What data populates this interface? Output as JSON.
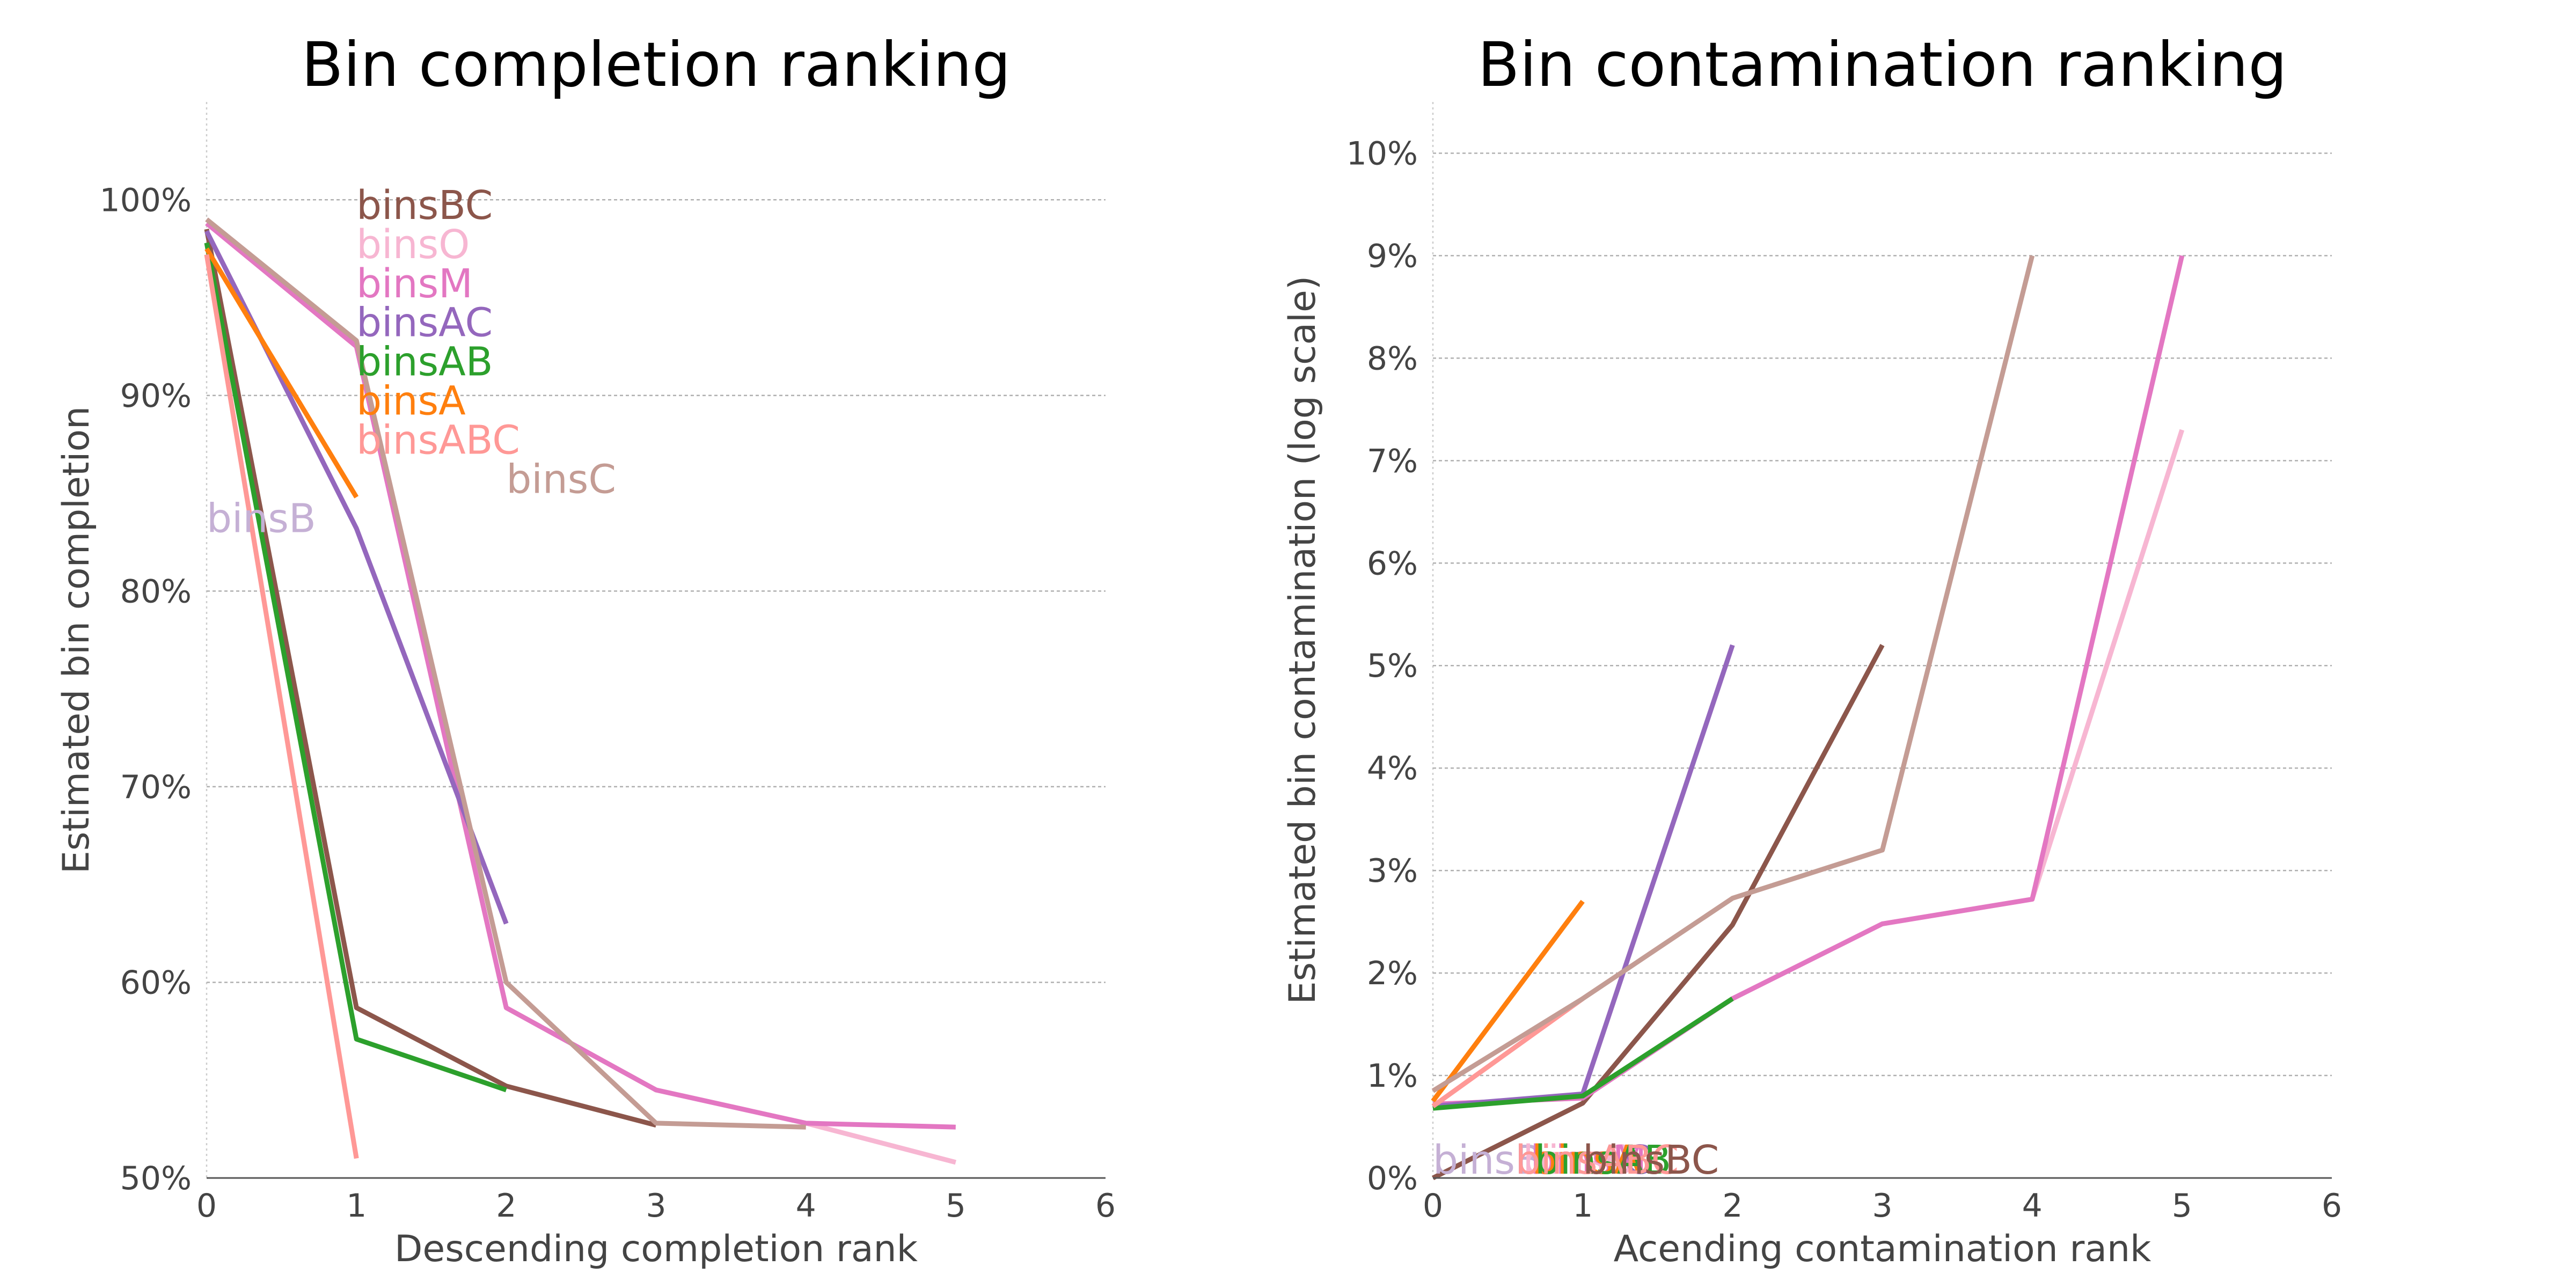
{
  "chart_data": [
    {
      "type": "line",
      "title": "Bin completion ranking",
      "xlabel": "Descending completion rank",
      "ylabel": "Estimated bin completion",
      "xlim": [
        0,
        6
      ],
      "ylim": [
        50,
        105
      ],
      "xticks": [
        0,
        1,
        2,
        3,
        4,
        5,
        6
      ],
      "yticks": [
        50,
        60,
        70,
        80,
        90,
        100
      ],
      "ytick_labels": [
        "50%",
        "60%",
        "70%",
        "80%",
        "90%",
        "100%"
      ],
      "grid": "horizontal",
      "series": [
        {
          "name": "binsBC",
          "color": "#8c564b",
          "points": [
            [
              0,
              98.5
            ],
            [
              1,
              58.7
            ],
            [
              2,
              54.7
            ],
            [
              3,
              52.7
            ]
          ]
        },
        {
          "name": "binsO",
          "color": "#f7b6d2",
          "points": [
            [
              0,
              98.8
            ],
            [
              1,
              92.5
            ],
            [
              2,
              58.7
            ],
            [
              3,
              54.5
            ],
            [
              4,
              52.8
            ],
            [
              5,
              50.8
            ]
          ]
        },
        {
          "name": "binsM",
          "color": "#e377c2",
          "points": [
            [
              0,
              98.8
            ],
            [
              1,
              92.5
            ],
            [
              2,
              58.7
            ],
            [
              3,
              54.5
            ],
            [
              4,
              52.8
            ],
            [
              5,
              52.6
            ]
          ]
        },
        {
          "name": "binsAC",
          "color": "#9467bd",
          "points": [
            [
              0,
              98.4
            ],
            [
              1,
              83.2
            ],
            [
              2,
              63.0
            ]
          ]
        },
        {
          "name": "binsAB",
          "color": "#2ca02c",
          "points": [
            [
              0,
              97.8
            ],
            [
              1,
              57.1
            ],
            [
              2,
              54.5
            ]
          ]
        },
        {
          "name": "binsA",
          "color": "#ff7f0e",
          "points": [
            [
              0,
              97.5
            ],
            [
              1,
              84.8
            ]
          ]
        },
        {
          "name": "binsABC",
          "color": "#ff9896",
          "points": [
            [
              0,
              97.2
            ],
            [
              1,
              51.0
            ]
          ]
        },
        {
          "name": "binsC",
          "color": "#c49c94",
          "points": [
            [
              0,
              99.0
            ],
            [
              1,
              92.8
            ],
            [
              2,
              60.0
            ],
            [
              3,
              52.8
            ],
            [
              4,
              52.6
            ]
          ]
        },
        {
          "name": "binsB",
          "color": "#c5b0d5",
          "points": []
        }
      ],
      "annotations": [
        {
          "text": "binsBC",
          "color": "#8c564b",
          "x": 1.0,
          "y": 98.8
        },
        {
          "text": "binsO",
          "color": "#f7b6d2",
          "x": 1.0,
          "y": 96.8
        },
        {
          "text": "binsM",
          "color": "#e377c2",
          "x": 1.0,
          "y": 94.8
        },
        {
          "text": "binsAC",
          "color": "#9467bd",
          "x": 1.0,
          "y": 92.8
        },
        {
          "text": "binsAB",
          "color": "#2ca02c",
          "x": 1.0,
          "y": 90.8
        },
        {
          "text": "binsA",
          "color": "#ff7f0e",
          "x": 1.0,
          "y": 88.8
        },
        {
          "text": "binsABC",
          "color": "#ff9896",
          "x": 1.0,
          "y": 86.8
        },
        {
          "text": "binsC",
          "color": "#c49c94",
          "x": 2.0,
          "y": 84.8
        },
        {
          "text": "binsB",
          "color": "#c5b0d5",
          "x": 0.0,
          "y": 82.8
        }
      ]
    },
    {
      "type": "line",
      "title": "Bin contamination ranking",
      "xlabel": "Acending contamination rank",
      "ylabel": "Estimated bin contamination (log scale)",
      "xlim": [
        0,
        6
      ],
      "ylim": [
        0,
        10.5
      ],
      "xticks": [
        0,
        1,
        2,
        3,
        4,
        5,
        6
      ],
      "yticks": [
        0,
        1,
        2,
        3,
        4,
        5,
        6,
        7,
        8,
        9,
        10
      ],
      "ytick_labels": [
        "0%",
        "1%",
        "2%",
        "3%",
        "4%",
        "5%",
        "6%",
        "7%",
        "8%",
        "9%",
        "10%"
      ],
      "grid": "horizontal",
      "series": [
        {
          "name": "binsBC",
          "color": "#8c564b",
          "points": [
            [
              0,
              0.0
            ],
            [
              1,
              0.73
            ],
            [
              2,
              2.47
            ],
            [
              3,
              5.2
            ]
          ]
        },
        {
          "name": "binsO",
          "color": "#f7b6d2",
          "points": [
            [
              0,
              0.72
            ],
            [
              1,
              0.78
            ],
            [
              2,
              1.75
            ],
            [
              3,
              2.48
            ],
            [
              4,
              2.72
            ],
            [
              5,
              7.3
            ]
          ]
        },
        {
          "name": "binsM",
          "color": "#e377c2",
          "points": [
            [
              0,
              0.72
            ],
            [
              1,
              0.78
            ],
            [
              2,
              1.75
            ],
            [
              3,
              2.48
            ],
            [
              4,
              2.72
            ],
            [
              5,
              9.0
            ]
          ]
        },
        {
          "name": "binsAC",
          "color": "#9467bd",
          "points": [
            [
              0,
              0.7
            ],
            [
              1,
              0.82
            ],
            [
              2,
              5.2
            ]
          ]
        },
        {
          "name": "binsAB",
          "color": "#2ca02c",
          "points": [
            [
              0,
              0.68
            ],
            [
              1,
              0.8
            ],
            [
              2,
              1.75
            ]
          ]
        },
        {
          "name": "binsA",
          "color": "#ff7f0e",
          "points": [
            [
              0,
              0.75
            ],
            [
              1,
              2.7
            ]
          ]
        },
        {
          "name": "binsABC",
          "color": "#ff9896",
          "points": [
            [
              0,
              0.7
            ],
            [
              1,
              1.75
            ]
          ]
        },
        {
          "name": "binsC",
          "color": "#c49c94",
          "points": [
            [
              0,
              0.85
            ],
            [
              1,
              1.75
            ],
            [
              2,
              2.73
            ],
            [
              3,
              3.2
            ],
            [
              4,
              9.0
            ]
          ]
        },
        {
          "name": "binsB",
          "color": "#c5b0d5",
          "points": []
        }
      ],
      "annotations": [
        {
          "text": "binsB",
          "color": "#c5b0d5",
          "x": 0.0,
          "y": 0.0
        },
        {
          "text": "binsAC",
          "color": "#9467bd",
          "x": 0.55,
          "y": 0.0
        },
        {
          "text": "binsO",
          "color": "#f7b6d2",
          "x": 0.6,
          "y": 0.0
        },
        {
          "text": "binsM",
          "color": "#e377c2",
          "x": 0.65,
          "y": 0.0
        },
        {
          "text": "binsA",
          "color": "#ff7f0e",
          "x": 0.66,
          "y": 0.0
        },
        {
          "text": "binsAB",
          "color": "#2ca02c",
          "x": 0.68,
          "y": 0.0
        },
        {
          "text": "binsABC",
          "color": "#ff9896",
          "x": 0.55,
          "y": 0.0
        },
        {
          "text": "binsBC",
          "color": "#8c564b",
          "x": 1.0,
          "y": 0.0
        }
      ]
    }
  ]
}
